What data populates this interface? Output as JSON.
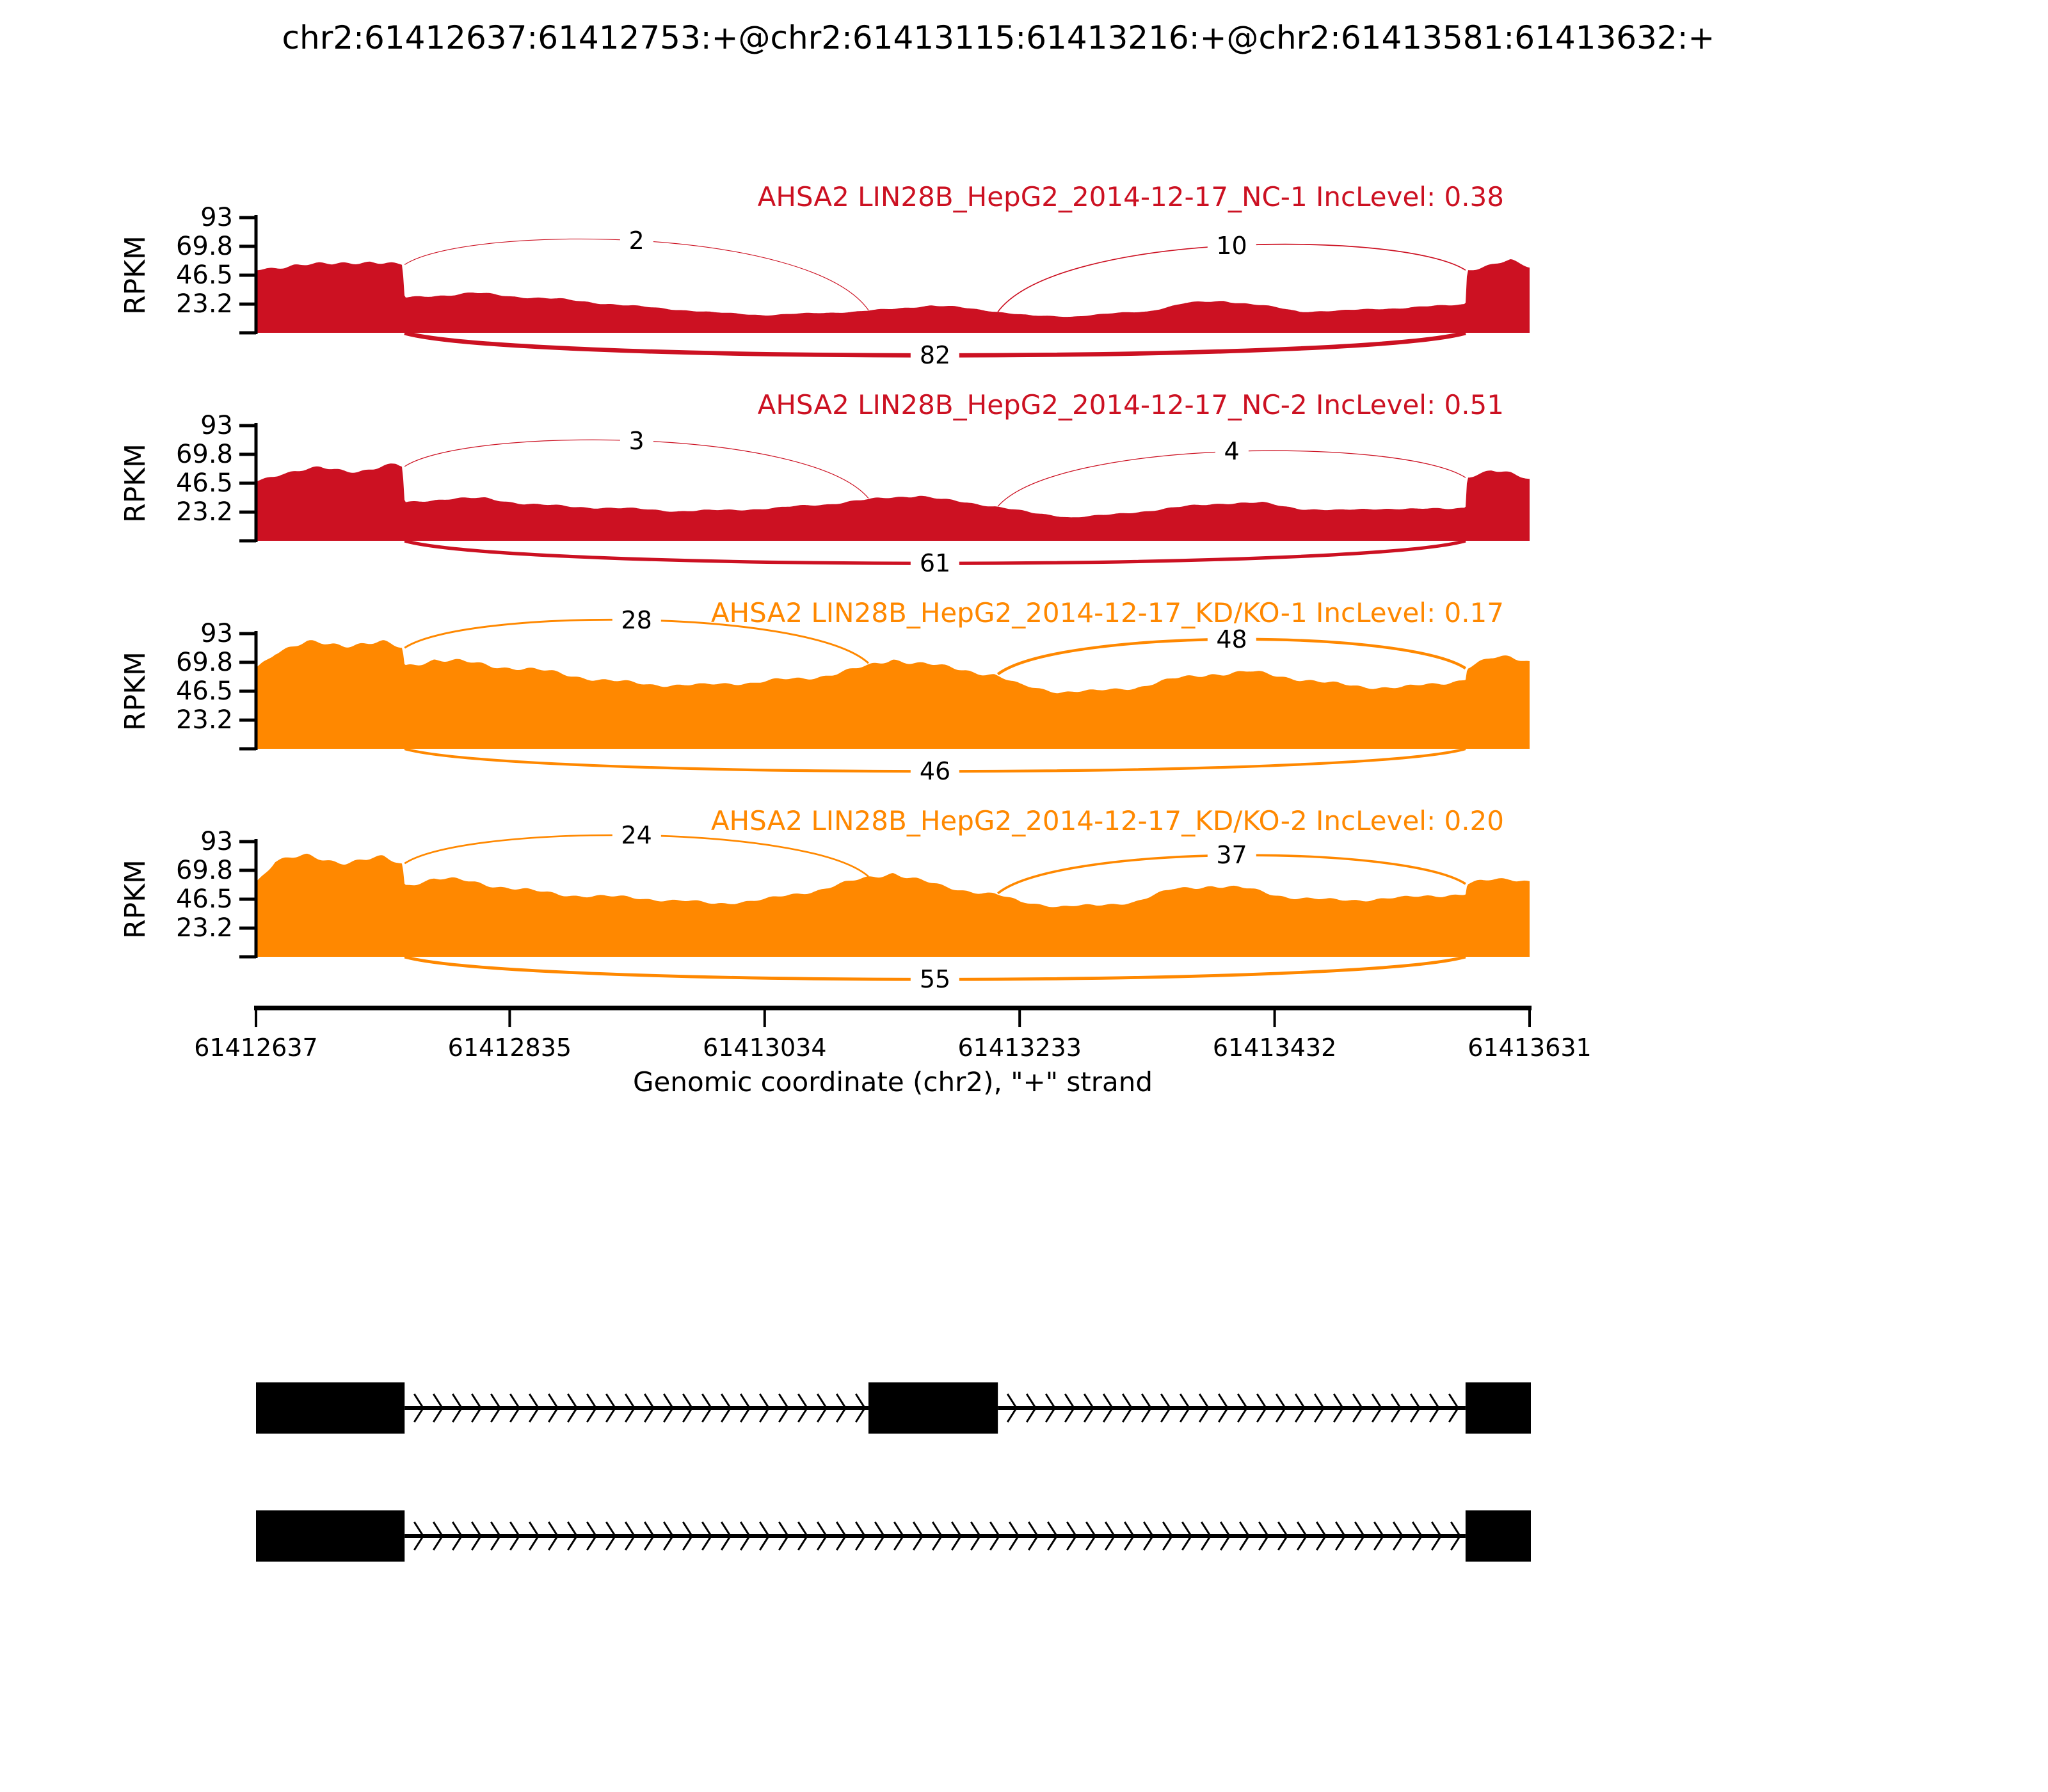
{
  "title": "chr2:61412637:61412753:+@chr2:61413115:61413216:+@chr2:61413581:61413632:+",
  "xlabel": "Genomic coordinate (chr2), \"+\" strand",
  "ylabel": "RPKM",
  "chart_data": {
    "type": "area",
    "subtype": "sashimi-plot",
    "title": "chr2:61412637:61412753:+@chr2:61413115:61413216:+@chr2:61413581:61413632:+",
    "xlabel": "Genomic coordinate (chr2), \"+\" strand",
    "ylabel": "RPKM",
    "ylim": [
      0,
      93
    ],
    "yticks": [
      23.2,
      46.5,
      69.8,
      93
    ],
    "xlim": [
      61412637,
      61413631
    ],
    "xticks": [
      61412637,
      61412835,
      61413034,
      61413233,
      61413432,
      61413631
    ],
    "chromosome": "chr2",
    "strand": "+",
    "colors": {
      "group1": "#CC1122",
      "group2": "#FF8800",
      "gene_model": "#000000"
    },
    "exon_coords": [
      [
        61412637,
        61412753
      ],
      [
        61413115,
        61413216
      ],
      [
        61413581,
        61413632
      ]
    ],
    "tracks": [
      {
        "label": "AHSA2 LIN28B_HepG2_2014-12-17_NC-1",
        "inc_label": "IncLevel: 0.38",
        "color": "#CC1122",
        "junctions": [
          {
            "from": 61412753,
            "to": 61413115,
            "count": 2,
            "position": "top"
          },
          {
            "from": 61413216,
            "to": 61413581,
            "count": 10,
            "position": "top"
          },
          {
            "from": 61412753,
            "to": 61413581,
            "count": 82,
            "position": "bottom"
          }
        ],
        "coverage_profile": [
          [
            0,
            52
          ],
          [
            0.03,
            56
          ],
          [
            0.06,
            54
          ],
          [
            0.09,
            57
          ],
          [
            0.115,
            54
          ],
          [
            0.1167,
            28
          ],
          [
            0.14,
            30
          ],
          [
            0.17,
            32
          ],
          [
            0.2,
            29
          ],
          [
            0.24,
            27
          ],
          [
            0.28,
            24
          ],
          [
            0.32,
            20
          ],
          [
            0.36,
            16
          ],
          [
            0.4,
            14
          ],
          [
            0.44,
            16
          ],
          [
            0.47,
            17
          ],
          [
            0.5,
            19
          ],
          [
            0.53,
            22
          ],
          [
            0.55,
            21
          ],
          [
            0.58,
            18
          ],
          [
            0.61,
            14
          ],
          [
            0.64,
            13
          ],
          [
            0.67,
            15
          ],
          [
            0.7,
            17
          ],
          [
            0.73,
            24
          ],
          [
            0.76,
            26
          ],
          [
            0.79,
            22
          ],
          [
            0.82,
            17
          ],
          [
            0.85,
            18
          ],
          [
            0.88,
            20
          ],
          [
            0.91,
            21
          ],
          [
            0.935,
            22
          ],
          [
            0.9497,
            23
          ],
          [
            0.951,
            50
          ],
          [
            0.97,
            53
          ],
          [
            0.985,
            56
          ],
          [
            1,
            52
          ]
        ]
      },
      {
        "label": "AHSA2 LIN28B_HepG2_2014-12-17_NC-2",
        "inc_label": "IncLevel: 0.51",
        "color": "#CC1122",
        "junctions": [
          {
            "from": 61412753,
            "to": 61413115,
            "count": 3,
            "position": "top"
          },
          {
            "from": 61413216,
            "to": 61413581,
            "count": 4,
            "position": "top"
          },
          {
            "from": 61412753,
            "to": 61413581,
            "count": 61,
            "position": "bottom"
          }
        ],
        "coverage_profile": [
          [
            0,
            48
          ],
          [
            0.02,
            55
          ],
          [
            0.05,
            59
          ],
          [
            0.08,
            57
          ],
          [
            0.11,
            60
          ],
          [
            0.115,
            58
          ],
          [
            0.1167,
            30
          ],
          [
            0.15,
            33
          ],
          [
            0.18,
            34
          ],
          [
            0.21,
            31
          ],
          [
            0.25,
            28
          ],
          [
            0.29,
            26
          ],
          [
            0.33,
            24
          ],
          [
            0.37,
            25
          ],
          [
            0.41,
            26
          ],
          [
            0.45,
            29
          ],
          [
            0.48,
            33
          ],
          [
            0.5,
            36
          ],
          [
            0.52,
            38
          ],
          [
            0.54,
            34
          ],
          [
            0.56,
            31
          ],
          [
            0.58,
            28
          ],
          [
            0.61,
            22
          ],
          [
            0.64,
            19
          ],
          [
            0.67,
            21
          ],
          [
            0.7,
            24
          ],
          [
            0.73,
            27
          ],
          [
            0.76,
            30
          ],
          [
            0.79,
            31
          ],
          [
            0.82,
            27
          ],
          [
            0.85,
            25
          ],
          [
            0.88,
            26
          ],
          [
            0.91,
            25
          ],
          [
            0.935,
            26
          ],
          [
            0.9497,
            27
          ],
          [
            0.951,
            52
          ],
          [
            0.97,
            56
          ],
          [
            0.985,
            54
          ],
          [
            1,
            50
          ]
        ]
      },
      {
        "label": "AHSA2 LIN28B_HepG2_2014-12-17_KD/KO-1",
        "inc_label": "IncLevel: 0.17",
        "color": "#FF8800",
        "junctions": [
          {
            "from": 61412753,
            "to": 61413115,
            "count": 28,
            "position": "top"
          },
          {
            "from": 61413216,
            "to": 61413581,
            "count": 48,
            "position": "top"
          },
          {
            "from": 61412753,
            "to": 61413581,
            "count": 46,
            "position": "bottom"
          }
        ],
        "coverage_profile": [
          [
            0,
            68
          ],
          [
            0.015,
            80
          ],
          [
            0.04,
            84
          ],
          [
            0.07,
            82
          ],
          [
            0.1,
            83
          ],
          [
            0.115,
            80
          ],
          [
            0.1167,
            66
          ],
          [
            0.14,
            73
          ],
          [
            0.16,
            71
          ],
          [
            0.19,
            67
          ],
          [
            0.23,
            62
          ],
          [
            0.27,
            57
          ],
          [
            0.31,
            53
          ],
          [
            0.35,
            50
          ],
          [
            0.39,
            52
          ],
          [
            0.43,
            57
          ],
          [
            0.46,
            63
          ],
          [
            0.48,
            67
          ],
          [
            0.5,
            73
          ],
          [
            0.52,
            69
          ],
          [
            0.54,
            66
          ],
          [
            0.56,
            64
          ],
          [
            0.58,
            61
          ],
          [
            0.6,
            52
          ],
          [
            0.63,
            46
          ],
          [
            0.66,
            45
          ],
          [
            0.69,
            48
          ],
          [
            0.72,
            56
          ],
          [
            0.75,
            62
          ],
          [
            0.78,
            63
          ],
          [
            0.81,
            58
          ],
          [
            0.84,
            53
          ],
          [
            0.87,
            51
          ],
          [
            0.9,
            50
          ],
          [
            0.92,
            52
          ],
          [
            0.935,
            53
          ],
          [
            0.9497,
            55
          ],
          [
            0.951,
            64
          ],
          [
            0.97,
            70
          ],
          [
            0.985,
            72
          ],
          [
            1,
            70
          ]
        ]
      },
      {
        "label": "AHSA2 LIN28B_HepG2_2014-12-17_KD/KO-2",
        "inc_label": "IncLevel: 0.20",
        "color": "#FF8800",
        "junctions": [
          {
            "from": 61412753,
            "to": 61413115,
            "count": 24,
            "position": "top"
          },
          {
            "from": 61413216,
            "to": 61413581,
            "count": 37,
            "position": "top"
          },
          {
            "from": 61412753,
            "to": 61413581,
            "count": 55,
            "position": "bottom"
          }
        ],
        "coverage_profile": [
          [
            0,
            60
          ],
          [
            0.015,
            76
          ],
          [
            0.04,
            80
          ],
          [
            0.07,
            77
          ],
          [
            0.1,
            79
          ],
          [
            0.115,
            74
          ],
          [
            0.1167,
            57
          ],
          [
            0.14,
            62
          ],
          [
            0.17,
            60
          ],
          [
            0.2,
            57
          ],
          [
            0.24,
            52
          ],
          [
            0.28,
            48
          ],
          [
            0.32,
            45
          ],
          [
            0.36,
            43
          ],
          [
            0.4,
            46
          ],
          [
            0.44,
            53
          ],
          [
            0.46,
            58
          ],
          [
            0.48,
            64
          ],
          [
            0.5,
            70
          ],
          [
            0.52,
            64
          ],
          [
            0.54,
            58
          ],
          [
            0.56,
            54
          ],
          [
            0.58,
            50
          ],
          [
            0.6,
            43
          ],
          [
            0.63,
            40
          ],
          [
            0.66,
            41
          ],
          [
            0.69,
            45
          ],
          [
            0.72,
            54
          ],
          [
            0.75,
            57
          ],
          [
            0.78,
            55
          ],
          [
            0.81,
            50
          ],
          [
            0.84,
            47
          ],
          [
            0.87,
            46
          ],
          [
            0.9,
            46
          ],
          [
            0.92,
            48
          ],
          [
            0.935,
            49
          ],
          [
            0.9497,
            50
          ],
          [
            0.951,
            58
          ],
          [
            0.97,
            62
          ],
          [
            0.985,
            64
          ],
          [
            1,
            62
          ]
        ]
      }
    ],
    "gene_model": {
      "isoforms": [
        {
          "exons": [
            [
              61412637,
              61412753
            ],
            [
              61413115,
              61413216
            ],
            [
              61413581,
              61413632
            ]
          ]
        },
        {
          "exons": [
            [
              61412637,
              61412753
            ],
            [
              61413581,
              61413632
            ]
          ]
        }
      ]
    }
  }
}
